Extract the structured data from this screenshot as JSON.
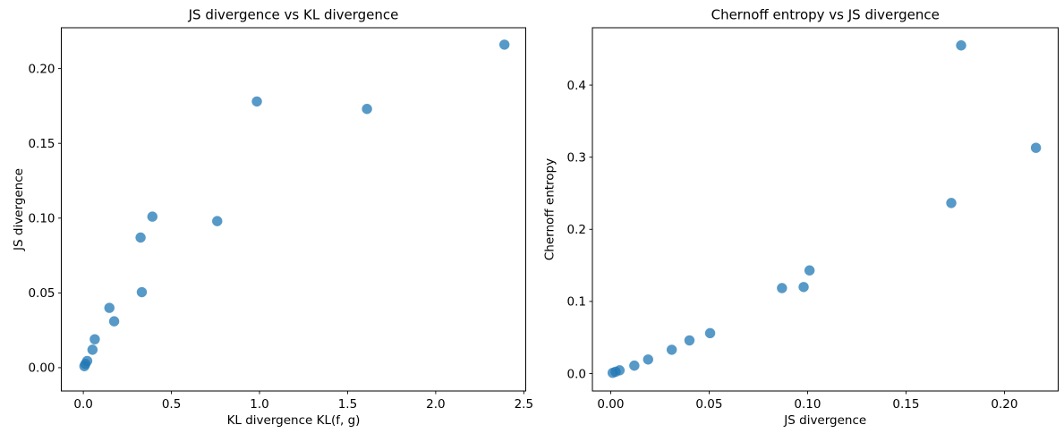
{
  "figure": {
    "background": "#ffffff",
    "point_color": "#1f77b4",
    "point_opacity": 0.75,
    "point_radius": 5.7,
    "frame_color": "#000000",
    "text_color": "#000000"
  },
  "chart_data": [
    {
      "type": "scatter",
      "title": "JS divergence vs KL divergence",
      "xlabel": "KL divergence KL(f, g)",
      "ylabel": "JS divergence",
      "xlim": [
        -0.125,
        2.511
      ],
      "ylim": [
        -0.0156,
        0.2273
      ],
      "xticks": [
        0.0,
        0.5,
        1.0,
        1.5,
        2.0,
        2.5
      ],
      "xtick_labels": [
        "0.0",
        "0.5",
        "1.0",
        "1.5",
        "2.0",
        "2.5"
      ],
      "yticks": [
        0.0,
        0.05,
        0.1,
        0.15,
        0.2
      ],
      "ytick_labels": [
        "0.00",
        "0.05",
        "0.10",
        "0.15",
        "0.20"
      ],
      "grid": false,
      "legend": null,
      "points": [
        [
          0.006,
          0.001
        ],
        [
          0.012,
          0.0025
        ],
        [
          0.022,
          0.0045
        ],
        [
          0.052,
          0.012
        ],
        [
          0.065,
          0.019
        ],
        [
          0.148,
          0.04
        ],
        [
          0.175,
          0.031
        ],
        [
          0.325,
          0.087
        ],
        [
          0.332,
          0.0505
        ],
        [
          0.392,
          0.101
        ],
        [
          0.76,
          0.098
        ],
        [
          0.985,
          0.178
        ],
        [
          1.61,
          0.173
        ],
        [
          2.39,
          0.216
        ]
      ]
    },
    {
      "type": "scatter",
      "title": "Chernoff entropy vs JS divergence",
      "xlabel": "JS divergence",
      "ylabel": "Chernoff entropy",
      "xlim": [
        -0.0093,
        0.2273
      ],
      "ylim": [
        -0.0242,
        0.4795
      ],
      "xticks": [
        0.0,
        0.05,
        0.1,
        0.15,
        0.2
      ],
      "xtick_labels": [
        "0.00",
        "0.05",
        "0.10",
        "0.15",
        "0.20"
      ],
      "yticks": [
        0.0,
        0.1,
        0.2,
        0.3,
        0.4
      ],
      "ytick_labels": [
        "0.0",
        "0.1",
        "0.2",
        "0.3",
        "0.4"
      ],
      "grid": false,
      "legend": null,
      "points": [
        [
          0.001,
          0.001
        ],
        [
          0.0025,
          0.0025
        ],
        [
          0.0045,
          0.0045
        ],
        [
          0.012,
          0.011
        ],
        [
          0.019,
          0.0195
        ],
        [
          0.031,
          0.033
        ],
        [
          0.04,
          0.046
        ],
        [
          0.0505,
          0.056
        ],
        [
          0.087,
          0.1185
        ],
        [
          0.098,
          0.12
        ],
        [
          0.101,
          0.143
        ],
        [
          0.173,
          0.2365
        ],
        [
          0.178,
          0.455
        ],
        [
          0.216,
          0.313
        ]
      ]
    }
  ]
}
